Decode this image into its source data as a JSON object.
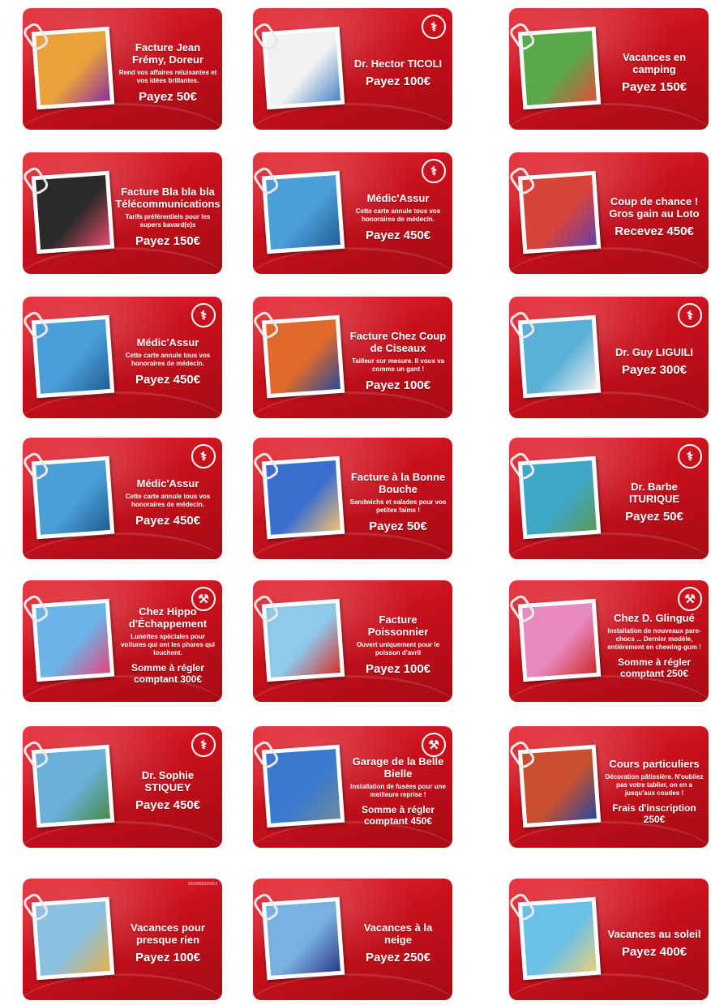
{
  "colors": {
    "card_red": "#c8101c",
    "text": "#ffffff"
  },
  "cards": [
    {
      "title": "Facture Jean Frémy, Doreur",
      "desc": "Rend vos affaires reluisantes et vos idées brillantes.",
      "amount": "Payez 50€",
      "icon": "",
      "photo": "#e9a23b",
      "photo2": "#8b2f9e"
    },
    {
      "title": "Dr. Hector TICOLI",
      "desc": "",
      "amount": "Payez 100€",
      "icon": "syringe-icon",
      "photo": "#f2f2f2",
      "photo2": "#4a86c6"
    },
    {
      "title": "Vacances en camping",
      "desc": "",
      "amount": "Payez 150€",
      "icon": "",
      "photo": "#5aa84a",
      "photo2": "#e0503a"
    },
    {
      "title": "Facture Bla bla bla Télécommunications",
      "desc": "Tarifs préférentiels pour les supers bavard(e)s",
      "amount": "Payez 150€",
      "icon": "",
      "photo": "#2a2a2a",
      "photo2": "#e84a6a"
    },
    {
      "title": "Médic'Assur",
      "desc": "Cette carte annule tous vos honoraires de médecin.",
      "amount": "Payez 450€",
      "icon": "syringe-icon",
      "photo": "#4b9ed6",
      "photo2": "#1f5e9a"
    },
    {
      "title": "Coup de chance ! Gros gain au Loto",
      "desc": "",
      "amount": "Recevez 450€",
      "icon": "",
      "photo": "#d9443a",
      "photo2": "#6a3ea8"
    },
    {
      "title": "Médic'Assur",
      "desc": "Cette carte annule tous vos honoraires de médecin.",
      "amount": "Payez 450€",
      "icon": "syringe-icon",
      "photo": "#4b9ed6",
      "photo2": "#1f5e9a"
    },
    {
      "title": "Facture Chez Coup de Ciseaux",
      "desc": "Tailleur sur mesure. Il vous va comme un gant !",
      "amount": "Payez 100€",
      "icon": "",
      "photo": "#e06a2a",
      "photo2": "#2a4a9a"
    },
    {
      "title": "Dr. Guy LIGUILI",
      "desc": "",
      "amount": "Payez 300€",
      "icon": "syringe-icon",
      "photo": "#5bb0d8",
      "photo2": "#f0f0f0"
    },
    {
      "title": "Médic'Assur",
      "desc": "Cette carte annule tous vos honoraires de médecin.",
      "amount": "Payez 450€",
      "icon": "syringe-icon",
      "photo": "#4b9ed6",
      "photo2": "#1f5e9a"
    },
    {
      "title": "Facture à la Bonne Bouche",
      "desc": "Sandwichs et salades pour vos petites faims !",
      "amount": "Payez  50€",
      "icon": "",
      "photo": "#3a6fd0",
      "photo2": "#f3c070"
    },
    {
      "title": "Dr. Barbe ITURIQUE",
      "desc": "",
      "amount": "Payez 50€",
      "icon": "syringe-icon",
      "photo": "#3fa7c8",
      "photo2": "#5a9a5a"
    },
    {
      "title": "Chez Hippo d'Échappement",
      "desc": "Lunettes spéciales pour voitures qui ont les phares qui louchent.",
      "amount": "Somme à régler comptant 300€",
      "icon": "wrench-icon",
      "photo": "#6ab4e8",
      "photo2": "#e8447a"
    },
    {
      "title": "Facture Poissonnier",
      "desc": "Ouvert uniquement pour le poisson d'avril",
      "amount": "Payez 100€",
      "icon": "",
      "photo": "#8fc8e8",
      "photo2": "#d8302a"
    },
    {
      "title": "Chez D. Glingué",
      "desc": "Installation de nouveaux pare-chocs ... Dernier modèle, entièrement en chewing-gum !",
      "amount": "Somme à régler comptant 250€",
      "icon": "wrench-icon",
      "photo": "#e88ac0",
      "photo2": "#d02a2a"
    },
    {
      "title": "Dr. Sophie STIQUEY",
      "desc": "",
      "amount": "Payez 450€",
      "icon": "syringe-icon",
      "photo": "#6ab0d8",
      "photo2": "#4a8a4a"
    },
    {
      "title": "Garage de la Belle Bielle",
      "desc": "Installation de fusées pour une meilleure reprise !",
      "amount": "Somme à régler comptant 450€",
      "icon": "wrench-icon",
      "photo": "#3a7ad0",
      "photo2": "#6a8a9a"
    },
    {
      "title": "Cours particuliers",
      "desc": "Décoration pâtissière. N'oubliez pas votre tablier, on en a jusqu'aux coudes !",
      "amount": "Frais d'inscription 250€",
      "icon": "",
      "photo": "#c85030",
      "photo2": "#2a4a9a"
    },
    {
      "title": "Vacances pour presque rien",
      "desc": "",
      "amount": "Payez 100€",
      "icon": "",
      "photo": "#8ac0e0",
      "photo2": "#e8b04a",
      "mark": "2010000320013"
    },
    {
      "title": "Vacances à la neige",
      "desc": "",
      "amount": "Payez 250€",
      "icon": "",
      "photo": "#7ab0e0",
      "photo2": "#2a3a8a"
    },
    {
      "title": "Vacances au soleil",
      "desc": "",
      "amount": "Payez 400€",
      "icon": "",
      "photo": "#6ac0e8",
      "photo2": "#e8d07a"
    }
  ]
}
